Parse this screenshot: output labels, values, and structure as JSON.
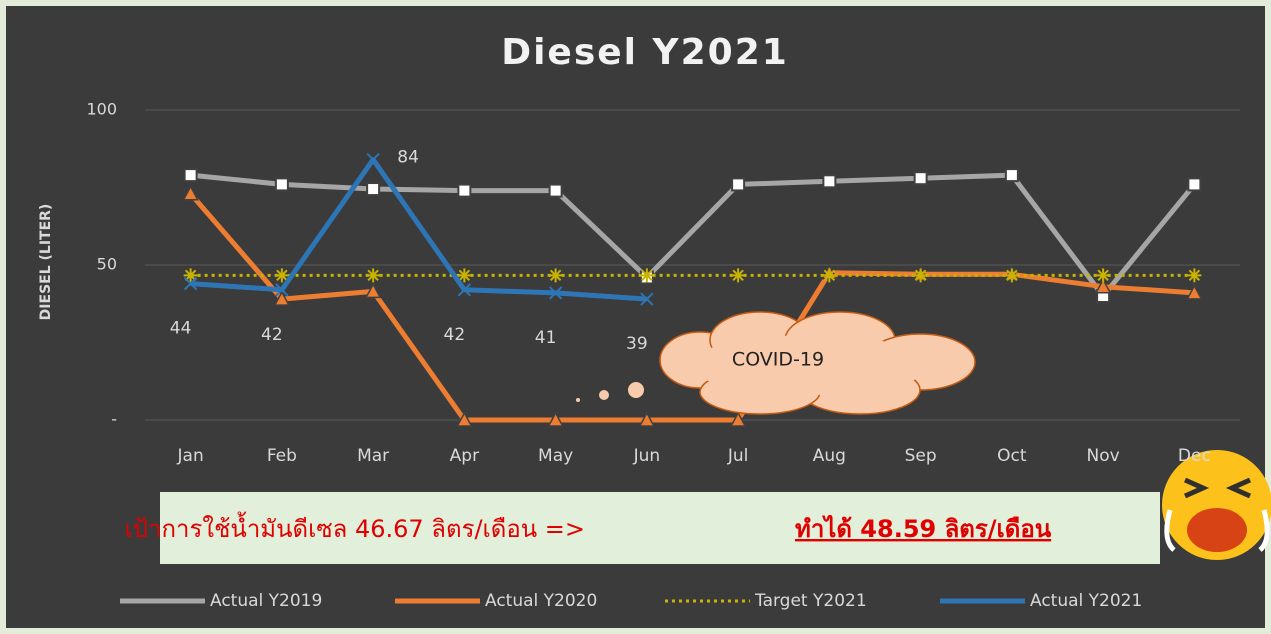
{
  "chart_data": {
    "type": "line",
    "title": "Diesel Y2021",
    "ylabel": "DIESEL (LITER)",
    "categories": [
      "Jan",
      "Feb",
      "Mar",
      "Apr",
      "May",
      "Jun",
      "Jul",
      "Aug",
      "Sep",
      "Oct",
      "Nov",
      "Dec"
    ],
    "ylim": [
      0,
      100
    ],
    "yticks": [
      {
        "value": 0,
        "label": "-"
      },
      50,
      100
    ],
    "grid": true,
    "legend": "bottom",
    "series": [
      {
        "name": "Actual Y2019",
        "color": "#a6a6a6",
        "marker": "square",
        "values": [
          79,
          76,
          74.5,
          74,
          74,
          46,
          76,
          77,
          78,
          79,
          40,
          76
        ]
      },
      {
        "name": "Actual Y2020",
        "color": "#ed7d31",
        "marker": "triangle",
        "values": [
          73,
          39,
          41.5,
          0,
          0,
          0,
          0,
          47.5,
          47,
          47,
          43,
          41
        ]
      },
      {
        "name": "Target Y2021",
        "color": "#c8b400",
        "marker": "star",
        "dashed": true,
        "values": [
          46.67,
          46.67,
          46.67,
          46.67,
          46.67,
          46.67,
          46.67,
          46.67,
          46.67,
          46.67,
          46.67,
          46.67
        ]
      },
      {
        "name": "Actual Y2021",
        "color": "#2e75b6",
        "marker": "x",
        "data_labels": true,
        "values": [
          44,
          42,
          84,
          42,
          41,
          39,
          null,
          null,
          null,
          null,
          null,
          null
        ]
      }
    ],
    "annotations": {
      "cloud": "COVID-19",
      "banner_target": "เป้าการใช้น้ำมันดีเซล 46.67 ลิตร/เดือน =>",
      "banner_result": "ทำได้ 48.59 ลิตร/เดือน"
    }
  }
}
